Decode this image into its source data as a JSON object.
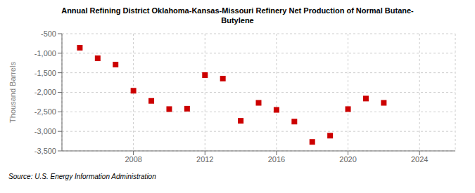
{
  "chart_data": {
    "type": "scatter",
    "title": "Annual Refining District Oklahoma-Kansas-Missouri Refinery Net Production of Normal Butane-\nButylene",
    "ylabel": "Thousand Barrels",
    "source": "Source: U.S. Energy Information Administration",
    "x": [
      2005,
      2006,
      2007,
      2008,
      2009,
      2010,
      2011,
      2012,
      2013,
      2014,
      2015,
      2016,
      2017,
      2018,
      2019,
      2020,
      2021,
      2022
    ],
    "values": [
      -860,
      -1130,
      -1290,
      -1960,
      -2220,
      -2430,
      -2420,
      -1560,
      -1650,
      -2730,
      -2270,
      -2450,
      -2750,
      -3270,
      -3110,
      -2430,
      -2160,
      -2270
    ],
    "color": "#cc0000",
    "marker": "square",
    "xlim": [
      2004,
      2026
    ],
    "ylim": [
      -3500,
      -500
    ],
    "xticks": [
      2008,
      2012,
      2016,
      2020,
      2024
    ],
    "yticks": [
      -500,
      {
        "value": -1000,
        "label": "-1,000"
      },
      {
        "value": -1500,
        "label": "-1,500"
      },
      {
        "value": -2000,
        "label": "-2,000"
      },
      {
        "value": -2500,
        "label": "-2,500"
      },
      {
        "value": -3000,
        "label": "-3,000"
      },
      {
        "value": -3500,
        "label": "-3,500"
      }
    ],
    "grid": true
  }
}
